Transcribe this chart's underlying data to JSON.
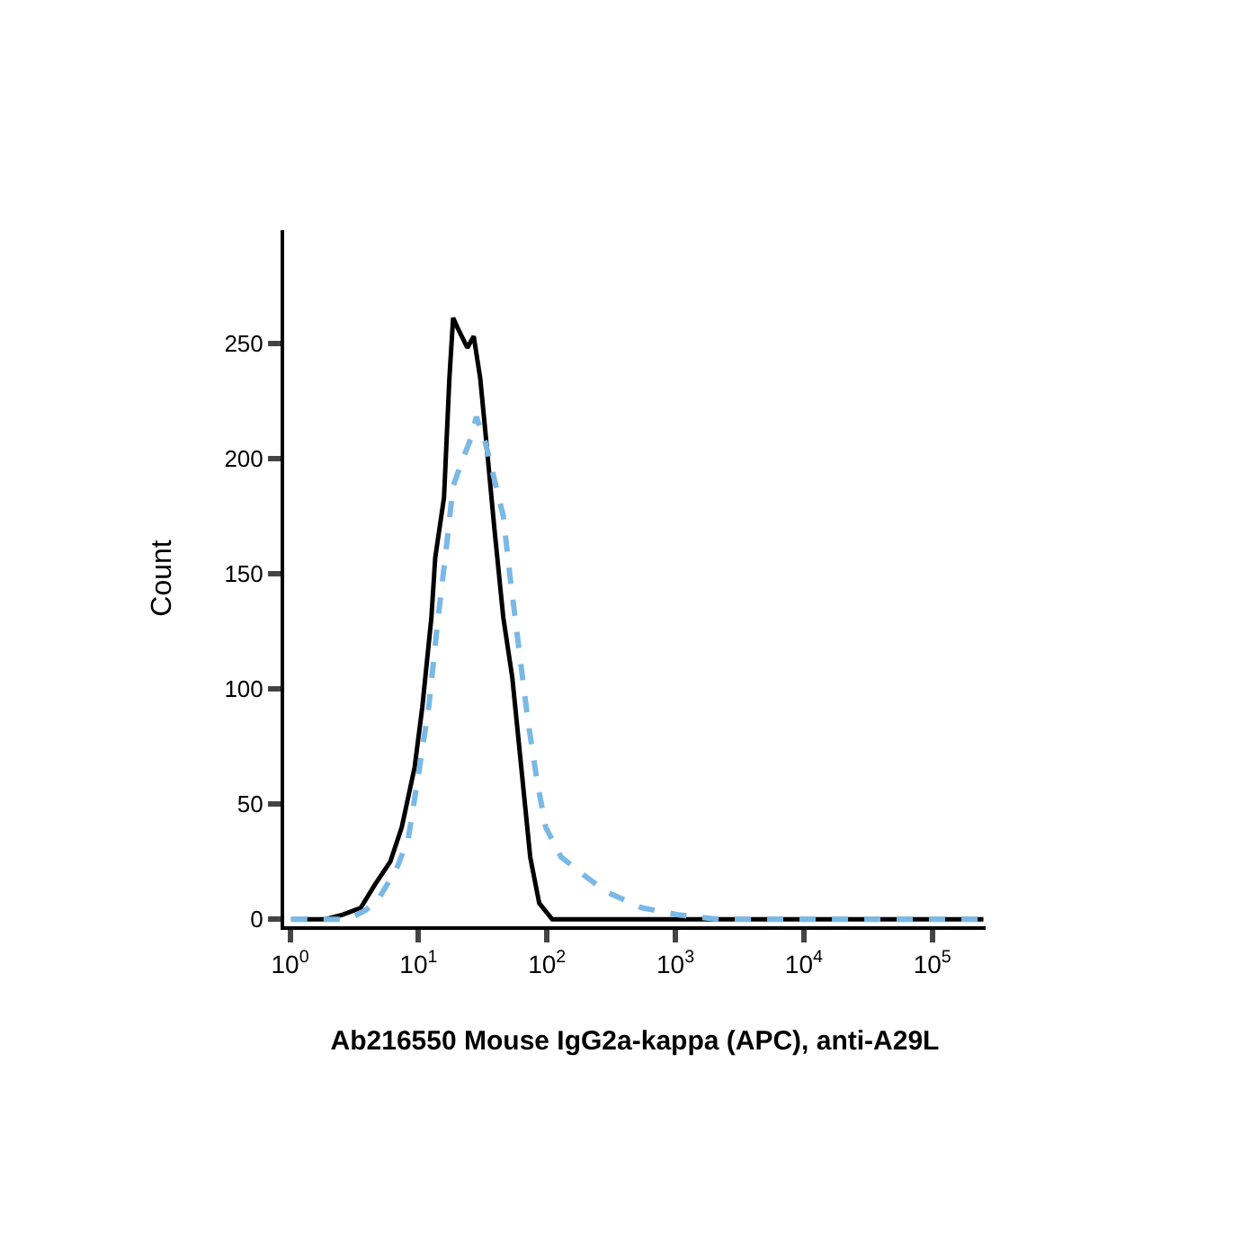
{
  "chart_data": {
    "type": "line",
    "xlabel": "Ab216550 Mouse IgG2a-kappa (APC), anti-A29L",
    "ylabel": "Count",
    "log": "x",
    "xlim": [
      0.9,
      260000
    ],
    "xticks": [
      {
        "value": 1,
        "label": "10$^{0}$"
      },
      {
        "value": 10,
        "label": "10$^{1}$"
      },
      {
        "value": 100,
        "label": "10$^{2}$"
      },
      {
        "value": 1000,
        "label": "10$^{3}$"
      },
      {
        "value": 10000,
        "label": "10$^{4}$"
      },
      {
        "value": 100000,
        "label": "10$^{5}$"
      }
    ],
    "ylim": [
      -3,
      299
    ],
    "yticks": [
      0,
      50,
      100,
      150,
      200,
      250
    ],
    "grid": false,
    "marker": "none",
    "series": [
      {
        "color": "#000000",
        "line_style": "solid",
        "x": [
          1.02,
          1.86,
          2.57,
          3.55,
          4.57,
          6.03,
          7.41,
          9.33,
          10.7,
          12.6,
          13.5,
          15.8,
          17.4,
          18.6,
          20.4,
          24,
          26.9,
          30.2,
          33.1,
          38.9,
          45.7,
          53.7,
          63.1,
          74.1,
          87.1,
          110,
          135,
          250000
        ],
        "values": [
          0,
          0,
          2,
          5,
          15,
          25,
          40,
          66,
          92,
          131,
          157,
          183,
          235,
          261,
          256,
          248,
          253,
          235,
          212,
          170,
          131,
          105,
          66,
          27,
          7,
          0,
          0,
          0
        ]
      },
      {
        "color": "#7ab8e6",
        "line_style": "dashed",
        "x": [
          1.02,
          2.82,
          3.89,
          4.9,
          6.76,
          8.32,
          10.2,
          12,
          14.1,
          16.6,
          18.6,
          21.9,
          25.7,
          28.2,
          33.1,
          38.9,
          45.7,
          51.3,
          60.3,
          70.8,
          83.2,
          97.7,
          129,
          186,
          288,
          550,
          1050,
          2190,
          250000
        ],
        "values": [
          0,
          0,
          4,
          9,
          22,
          35,
          66,
          92,
          129,
          163,
          188,
          199,
          209,
          218,
          207,
          191,
          175,
          150,
          118,
          87,
          61,
          40,
          27,
          20,
          12,
          5,
          2,
          0,
          0
        ]
      }
    ]
  }
}
